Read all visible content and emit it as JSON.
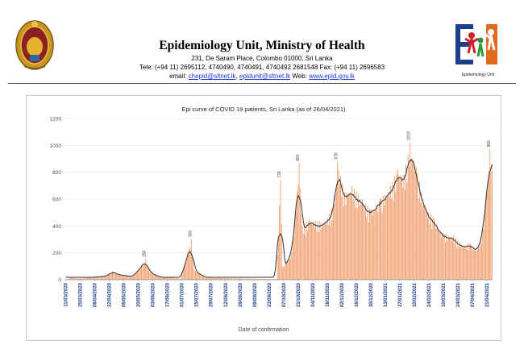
{
  "header": {
    "title": "Epidemiology Unit,     Ministry of Health",
    "address": "231, De Saram Place, Colombo 01000, Sri Lanka",
    "tele": "Tele: (+94 11) 2695112, 4740490, 4740491, 4740492 2681548  Fax: (+94 11) 2696583",
    "email_label": "email: ",
    "email_1": "chepid@sltnet.lk",
    "email_sep": ", ",
    "email_2": "epidunit@sltnet.lk",
    "web_label": " Web: ",
    "web": "www.epid.gov.lk",
    "logo_caption": "Epidemiology Unit",
    "emblem_icon": "sri-lanka-national-emblem",
    "logo_icon": "epidemiology-unit-logo"
  },
  "chart_data": {
    "type": "bar",
    "title": "Epi curve of COVID 19 patients, Sri Lanka  (as of 26/04/2021)",
    "xlabel": "Date of confirmation",
    "ylabel": "",
    "ylim": [
      0,
      1200
    ],
    "yticks": [
      0,
      200,
      400,
      600,
      800,
      1000,
      1200
    ],
    "grid": true,
    "legend": "none",
    "bar_color": "#f0a070",
    "line_color": "#333333",
    "date_ticks": [
      "11/03/2020",
      "25/03/2020",
      "08/04/2020",
      "22/04/2020",
      "06/05/2020",
      "20/05/2020",
      "03/06/2020",
      "17/06/2020",
      "01/07/2020",
      "15/07/2020",
      "29/07/2020",
      "12/08/2020",
      "26/08/2020",
      "09/09/2020",
      "23/09/2020",
      "07/10/2020",
      "21/10/2020",
      "04/11/2020",
      "18/11/2020",
      "02/12/2020",
      "16/12/2020",
      "30/12/2020",
      "13/01/2021",
      "27/01/2021",
      "10/02/2021",
      "24/02/2021",
      "10/03/2021",
      "24/03/2021",
      "07/04/2021",
      "21/04/2021"
    ],
    "annotations": [
      {
        "date": "2020-05-27",
        "value": 150
      },
      {
        "date": "2020-07-10",
        "value": 300
      },
      {
        "date": "2020-10-04",
        "value": 739
      },
      {
        "date": "2020-10-22",
        "value": 866
      },
      {
        "date": "2020-11-28",
        "value": 878
      },
      {
        "date": "2021-02-06",
        "value": 1019
      },
      {
        "date": "2021-04-24",
        "value": 969
      }
    ],
    "anchor_values": [
      {
        "date": "2020-03-11",
        "value": 2
      },
      {
        "date": "2020-03-16",
        "value": 16
      },
      {
        "date": "2020-03-24",
        "value": 10
      },
      {
        "date": "2020-04-05",
        "value": 18
      },
      {
        "date": "2020-04-20",
        "value": 30
      },
      {
        "date": "2020-04-25",
        "value": 65
      },
      {
        "date": "2020-05-01",
        "value": 40
      },
      {
        "date": "2020-05-15",
        "value": 25
      },
      {
        "date": "2020-05-27",
        "value": 150
      },
      {
        "date": "2020-05-31",
        "value": 60
      },
      {
        "date": "2020-06-10",
        "value": 20
      },
      {
        "date": "2020-06-30",
        "value": 10
      },
      {
        "date": "2020-07-10",
        "value": 300
      },
      {
        "date": "2020-07-13",
        "value": 70
      },
      {
        "date": "2020-07-25",
        "value": 15
      },
      {
        "date": "2020-09-30",
        "value": 5
      },
      {
        "date": "2020-10-04",
        "value": 739
      },
      {
        "date": "2020-10-06",
        "value": 90
      },
      {
        "date": "2020-10-15",
        "value": 200
      },
      {
        "date": "2020-10-22",
        "value": 866
      },
      {
        "date": "2020-10-25",
        "value": 400
      },
      {
        "date": "2020-11-01",
        "value": 450
      },
      {
        "date": "2020-11-15",
        "value": 430
      },
      {
        "date": "2020-11-25",
        "value": 560
      },
      {
        "date": "2020-11-28",
        "value": 878
      },
      {
        "date": "2020-12-05",
        "value": 650
      },
      {
        "date": "2020-12-12",
        "value": 700
      },
      {
        "date": "2020-12-22",
        "value": 600
      },
      {
        "date": "2020-12-30",
        "value": 520
      },
      {
        "date": "2021-01-08",
        "value": 600
      },
      {
        "date": "2021-01-18",
        "value": 700
      },
      {
        "date": "2021-01-25",
        "value": 820
      },
      {
        "date": "2021-01-31",
        "value": 780
      },
      {
        "date": "2021-02-06",
        "value": 1019
      },
      {
        "date": "2021-02-12",
        "value": 830
      },
      {
        "date": "2021-02-20",
        "value": 560
      },
      {
        "date": "2021-03-01",
        "value": 450
      },
      {
        "date": "2021-03-10",
        "value": 340
      },
      {
        "date": "2021-03-20",
        "value": 330
      },
      {
        "date": "2021-03-28",
        "value": 260
      },
      {
        "date": "2021-04-05",
        "value": 270
      },
      {
        "date": "2021-04-12",
        "value": 220
      },
      {
        "date": "2021-04-17",
        "value": 380
      },
      {
        "date": "2021-04-20",
        "value": 600
      },
      {
        "date": "2021-04-24",
        "value": 969
      },
      {
        "date": "2021-04-26",
        "value": 860
      }
    ]
  }
}
